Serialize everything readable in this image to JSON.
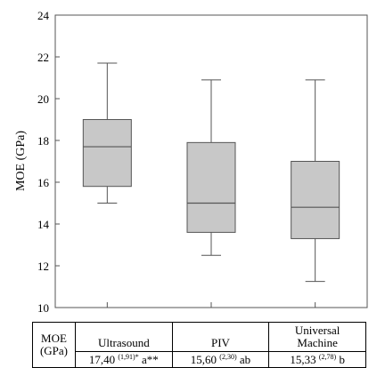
{
  "chart_data": {
    "type": "box",
    "ylabel": "MOE (GPa)",
    "ylim": [
      10,
      24
    ],
    "yticks": [
      "10",
      "12",
      "14",
      "16",
      "18",
      "20",
      "22",
      "24"
    ],
    "grid": false,
    "legend": "none",
    "colors": {
      "box_fill": "#c8c8c8",
      "stroke": "#555555"
    },
    "categories": [
      "Ultrasound",
      "PIV",
      "Universal Machine"
    ],
    "boxes": [
      {
        "name": "Ultrasound",
        "min": 15.0,
        "q1": 15.8,
        "median": 17.7,
        "q3": 19.0,
        "max": 21.7
      },
      {
        "name": "PIV",
        "min": 12.5,
        "q1": 13.6,
        "median": 15.0,
        "q3": 17.9,
        "max": 20.9
      },
      {
        "name": "Universal Machine",
        "min": 11.25,
        "q1": 13.3,
        "median": 14.8,
        "q3": 17.0,
        "max": 20.9
      }
    ]
  },
  "table": {
    "row_header": [
      "MOE",
      "(GPa)"
    ],
    "columns": [
      {
        "name_lines": [
          "Ultrasound"
        ],
        "mean": "17,40",
        "sd": "(1,91)*",
        "group": "a**"
      },
      {
        "name_lines": [
          "PIV"
        ],
        "mean": "15,60",
        "sd": "(2,30)",
        "group": "ab"
      },
      {
        "name_lines": [
          "Universal",
          "Machine"
        ],
        "mean": "15,33",
        "sd": "(2,78)",
        "group": "b"
      }
    ]
  }
}
